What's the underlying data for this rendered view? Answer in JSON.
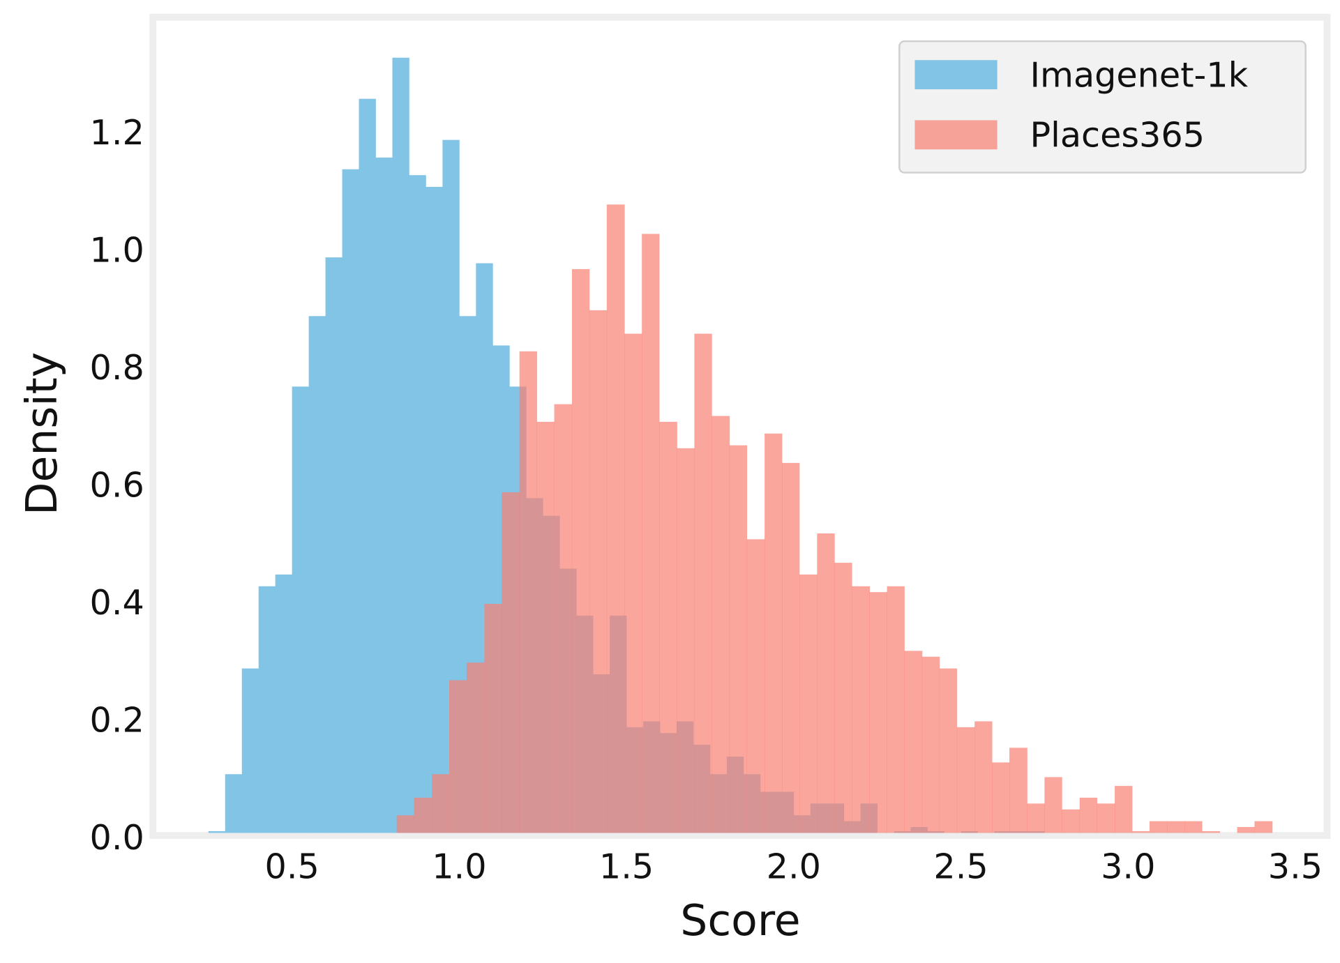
{
  "chart_data": {
    "type": "histogram",
    "x_label": "Score",
    "y_label": "Density",
    "xlim": [
      0.084,
      3.595
    ],
    "ylim": [
      0,
      1.389
    ],
    "xticks": [
      0.5,
      {
        "value": 1,
        "label": "1.0"
      },
      1.5,
      {
        "value": 2,
        "label": "2.0"
      },
      2.5,
      {
        "value": 3,
        "label": "3.0"
      },
      3.5
    ],
    "yticks": [
      {
        "value": 0,
        "label": "0.0"
      },
      0.2,
      0.4,
      0.6,
      0.8,
      {
        "value": 1,
        "label": "1.0"
      },
      1.2
    ],
    "grid": false,
    "legend": "upper right",
    "series": [
      {
        "name": "Imagenet-1k",
        "color": "#82c4e6",
        "bins": [
          0.25,
          0.3,
          0.35,
          0.4,
          0.45,
          0.5,
          0.55,
          0.6,
          0.65,
          0.7,
          0.75,
          0.8,
          0.85,
          0.9,
          0.95,
          1.0,
          1.05,
          1.1,
          1.15,
          1.2,
          1.25,
          1.3,
          1.35,
          1.4,
          1.45,
          1.5,
          1.55,
          1.6,
          1.65,
          1.7,
          1.75,
          1.8,
          1.85,
          1.9,
          1.95,
          2.0,
          2.05,
          2.1,
          2.15,
          2.2,
          2.25,
          2.3,
          2.35,
          2.4,
          2.45,
          2.5,
          2.55,
          2.6,
          2.65,
          2.7,
          2.75
        ],
        "values": [
          0.003,
          0.1,
          0.28,
          0.42,
          0.44,
          0.76,
          0.88,
          0.98,
          1.13,
          1.25,
          1.15,
          1.32,
          1.12,
          1.1,
          1.18,
          0.88,
          0.97,
          0.83,
          0.76,
          0.57,
          0.54,
          0.45,
          0.37,
          0.27,
          0.37,
          0.18,
          0.19,
          0.17,
          0.19,
          0.15,
          0.1,
          0.13,
          0.1,
          0.07,
          0.07,
          0.03,
          0.05,
          0.05,
          0.02,
          0.05,
          0,
          0.003,
          0.01,
          0.003,
          0,
          0.003,
          0,
          0.003,
          0.003,
          0.003
        ]
      },
      {
        "name": "Places365",
        "color": "#fa8072",
        "bins": [
          0.813,
          0.865,
          0.918,
          0.97,
          1.022,
          1.075,
          1.127,
          1.18,
          1.232,
          1.284,
          1.337,
          1.389,
          1.441,
          1.494,
          1.546,
          1.598,
          1.651,
          1.703,
          1.755,
          1.808,
          1.86,
          1.913,
          1.965,
          2.017,
          2.07,
          2.122,
          2.174,
          2.227,
          2.279,
          2.331,
          2.384,
          2.436,
          2.488,
          2.541,
          2.593,
          2.645,
          2.698,
          2.75,
          2.802,
          2.855,
          2.907,
          2.96,
          3.012,
          3.064,
          3.117,
          3.169,
          3.221,
          3.274,
          3.326,
          3.378,
          3.431
        ],
        "values": [
          0.03,
          0.06,
          0.1,
          0.26,
          0.29,
          0.39,
          0.58,
          0.82,
          0.7,
          0.73,
          0.96,
          0.89,
          1.07,
          0.85,
          1.02,
          0.7,
          0.655,
          0.85,
          0.71,
          0.66,
          0.5,
          0.68,
          0.63,
          0.44,
          0.51,
          0.46,
          0.42,
          0.41,
          0.42,
          0.31,
          0.3,
          0.28,
          0.18,
          0.19,
          0.12,
          0.145,
          0.05,
          0.095,
          0.04,
          0.06,
          0.05,
          0.08,
          0.003,
          0.02,
          0.02,
          0.02,
          0.003,
          0,
          0.01,
          0.02
        ]
      }
    ]
  }
}
